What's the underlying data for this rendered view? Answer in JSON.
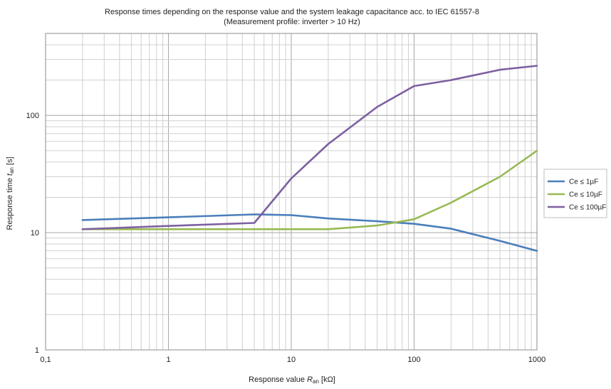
{
  "chart_data": {
    "type": "line",
    "title": "Response times depending on the response value and the system leakage capacitance acc. to IEC 61557-8",
    "subtitle": "(Measurement profile: inverter > 10 Hz)",
    "xlabel": {
      "main": "Response value ",
      "var": "R",
      "sub": "an",
      "unit": " [kΩ]"
    },
    "ylabel": {
      "main": "Response time ",
      "var": "t",
      "sub": "an",
      "unit": " [s]"
    },
    "x_scale": "log",
    "y_scale": "log",
    "xlim": [
      0.1,
      1000
    ],
    "ylim": [
      1,
      500
    ],
    "x_ticks": [
      {
        "value": 0.1,
        "label": "0,1"
      },
      {
        "value": 1,
        "label": "1"
      },
      {
        "value": 10,
        "label": "10"
      },
      {
        "value": 100,
        "label": "100"
      },
      {
        "value": 1000,
        "label": "1000"
      }
    ],
    "y_ticks": [
      {
        "value": 1,
        "label": "1"
      },
      {
        "value": 10,
        "label": "10"
      },
      {
        "value": 100,
        "label": "100"
      }
    ],
    "grid": true,
    "legend": "right",
    "series": [
      {
        "name": "Ce ≤ 1µF",
        "color": "#4a7ebb",
        "x": [
          0.2,
          1,
          5,
          10,
          20,
          50,
          100,
          200,
          500,
          1000
        ],
        "y": [
          12.8,
          13.5,
          14.3,
          14.1,
          13.2,
          12.5,
          11.9,
          10.8,
          8.5,
          7.0
        ]
      },
      {
        "name": "Ce ≤ 10µF",
        "color": "#98b954",
        "x": [
          0.2,
          1,
          5,
          10,
          20,
          50,
          100,
          200,
          500,
          1000
        ],
        "y": [
          10.7,
          10.7,
          10.7,
          10.7,
          10.7,
          11.5,
          13.0,
          18.0,
          30.0,
          50.0
        ]
      },
      {
        "name": "Ce ≤ 100µF",
        "color": "#7d60a0",
        "x": [
          0.2,
          1,
          5,
          10,
          20,
          50,
          100,
          200,
          500,
          1000
        ],
        "y": [
          10.7,
          11.4,
          12.1,
          29.0,
          57.0,
          118.0,
          178.0,
          200.0,
          245.0,
          265.0
        ]
      }
    ]
  }
}
